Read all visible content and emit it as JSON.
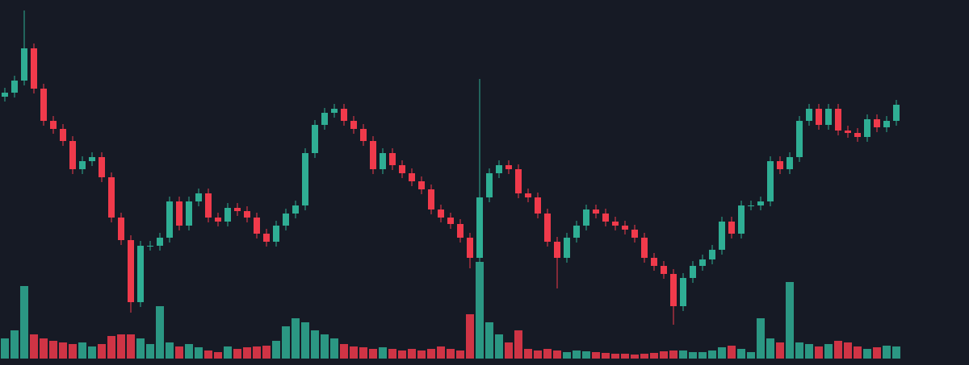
{
  "chart_data": {
    "type": "candlestick",
    "up_color": "#2fae94",
    "down_color": "#f03a4b",
    "background": "#161a25",
    "ylim": [
      0,
      453
    ],
    "y2lim": [
      0,
      130
    ],
    "open": [
      333,
      338,
      353,
      393,
      343,
      303,
      293,
      278,
      243,
      253,
      258,
      233,
      183,
      155,
      78,
      148,
      148,
      158,
      203,
      173,
      203,
      213,
      183,
      178,
      195,
      191,
      183,
      163,
      153,
      173,
      188,
      198,
      263,
      298,
      313,
      318,
      303,
      293,
      278,
      243,
      263,
      248,
      238,
      228,
      218,
      193,
      183,
      175,
      158,
      133,
      208,
      238,
      248,
      243,
      213,
      208,
      188,
      153,
      133,
      158,
      173,
      193,
      188,
      178,
      173,
      168,
      158,
      133,
      123,
      113,
      73,
      108,
      123,
      131,
      143,
      178,
      163,
      198,
      198,
      203,
      253,
      243,
      258,
      303,
      318,
      298,
      318,
      291,
      288,
      283,
      305,
      295,
      303
    ],
    "high": [
      344,
      359,
      440,
      399,
      349,
      309,
      299,
      284,
      259,
      264,
      264,
      239,
      189,
      161,
      154,
      154,
      164,
      209,
      209,
      209,
      219,
      219,
      189,
      201,
      201,
      197,
      189,
      169,
      179,
      194,
      204,
      269,
      304,
      319,
      324,
      324,
      309,
      299,
      284,
      269,
      269,
      254,
      244,
      234,
      224,
      199,
      189,
      181,
      164,
      355,
      244,
      254,
      254,
      249,
      219,
      214,
      194,
      159,
      164,
      179,
      199,
      199,
      194,
      184,
      179,
      174,
      164,
      139,
      129,
      119,
      114,
      129,
      137,
      149,
      184,
      184,
      204,
      204,
      209,
      259,
      259,
      264,
      309,
      324,
      324,
      324,
      324,
      297,
      294,
      311,
      311,
      309,
      329
    ],
    "low": [
      327,
      332,
      347,
      337,
      297,
      287,
      272,
      237,
      237,
      247,
      227,
      177,
      149,
      65,
      72,
      142,
      142,
      152,
      167,
      167,
      197,
      177,
      172,
      172,
      185,
      177,
      157,
      147,
      147,
      167,
      182,
      192,
      257,
      292,
      307,
      297,
      287,
      272,
      237,
      237,
      242,
      232,
      222,
      212,
      187,
      177,
      169,
      152,
      120,
      127,
      202,
      232,
      237,
      207,
      202,
      182,
      147,
      95,
      127,
      152,
      167,
      182,
      172,
      167,
      162,
      152,
      127,
      117,
      107,
      50,
      67,
      102,
      117,
      125,
      137,
      157,
      157,
      192,
      192,
      197,
      237,
      237,
      252,
      297,
      292,
      292,
      285,
      282,
      277,
      277,
      289,
      289,
      297
    ],
    "close": [
      338,
      353,
      393,
      343,
      303,
      293,
      278,
      243,
      253,
      258,
      233,
      183,
      155,
      78,
      148,
      148,
      158,
      203,
      173,
      203,
      213,
      183,
      178,
      195,
      191,
      183,
      163,
      153,
      173,
      188,
      198,
      263,
      298,
      313,
      318,
      303,
      293,
      278,
      243,
      263,
      248,
      238,
      228,
      218,
      193,
      183,
      175,
      158,
      133,
      208,
      238,
      248,
      243,
      213,
      208,
      188,
      153,
      133,
      158,
      173,
      193,
      188,
      178,
      173,
      168,
      158,
      133,
      123,
      113,
      73,
      108,
      123,
      131,
      143,
      178,
      163,
      198,
      198,
      203,
      253,
      243,
      258,
      303,
      318,
      298,
      318,
      291,
      288,
      283,
      305,
      295,
      303,
      323
    ],
    "volume": [
      25,
      35,
      90,
      30,
      25,
      22,
      20,
      18,
      20,
      15,
      18,
      28,
      30,
      30,
      25,
      18,
      65,
      20,
      15,
      18,
      14,
      10,
      8,
      15,
      12,
      14,
      15,
      16,
      22,
      40,
      50,
      45,
      35,
      30,
      25,
      18,
      15,
      14,
      12,
      14,
      12,
      10,
      12,
      10,
      12,
      15,
      12,
      10,
      55,
      120,
      45,
      30,
      20,
      35,
      12,
      10,
      12,
      10,
      8,
      10,
      9,
      8,
      7,
      6,
      6,
      5,
      6,
      7,
      9,
      10,
      10,
      8,
      8,
      10,
      14,
      16,
      12,
      8,
      50,
      25,
      20,
      95,
      20,
      18,
      15,
      18,
      22,
      20,
      15,
      12,
      14,
      16,
      15
    ]
  }
}
